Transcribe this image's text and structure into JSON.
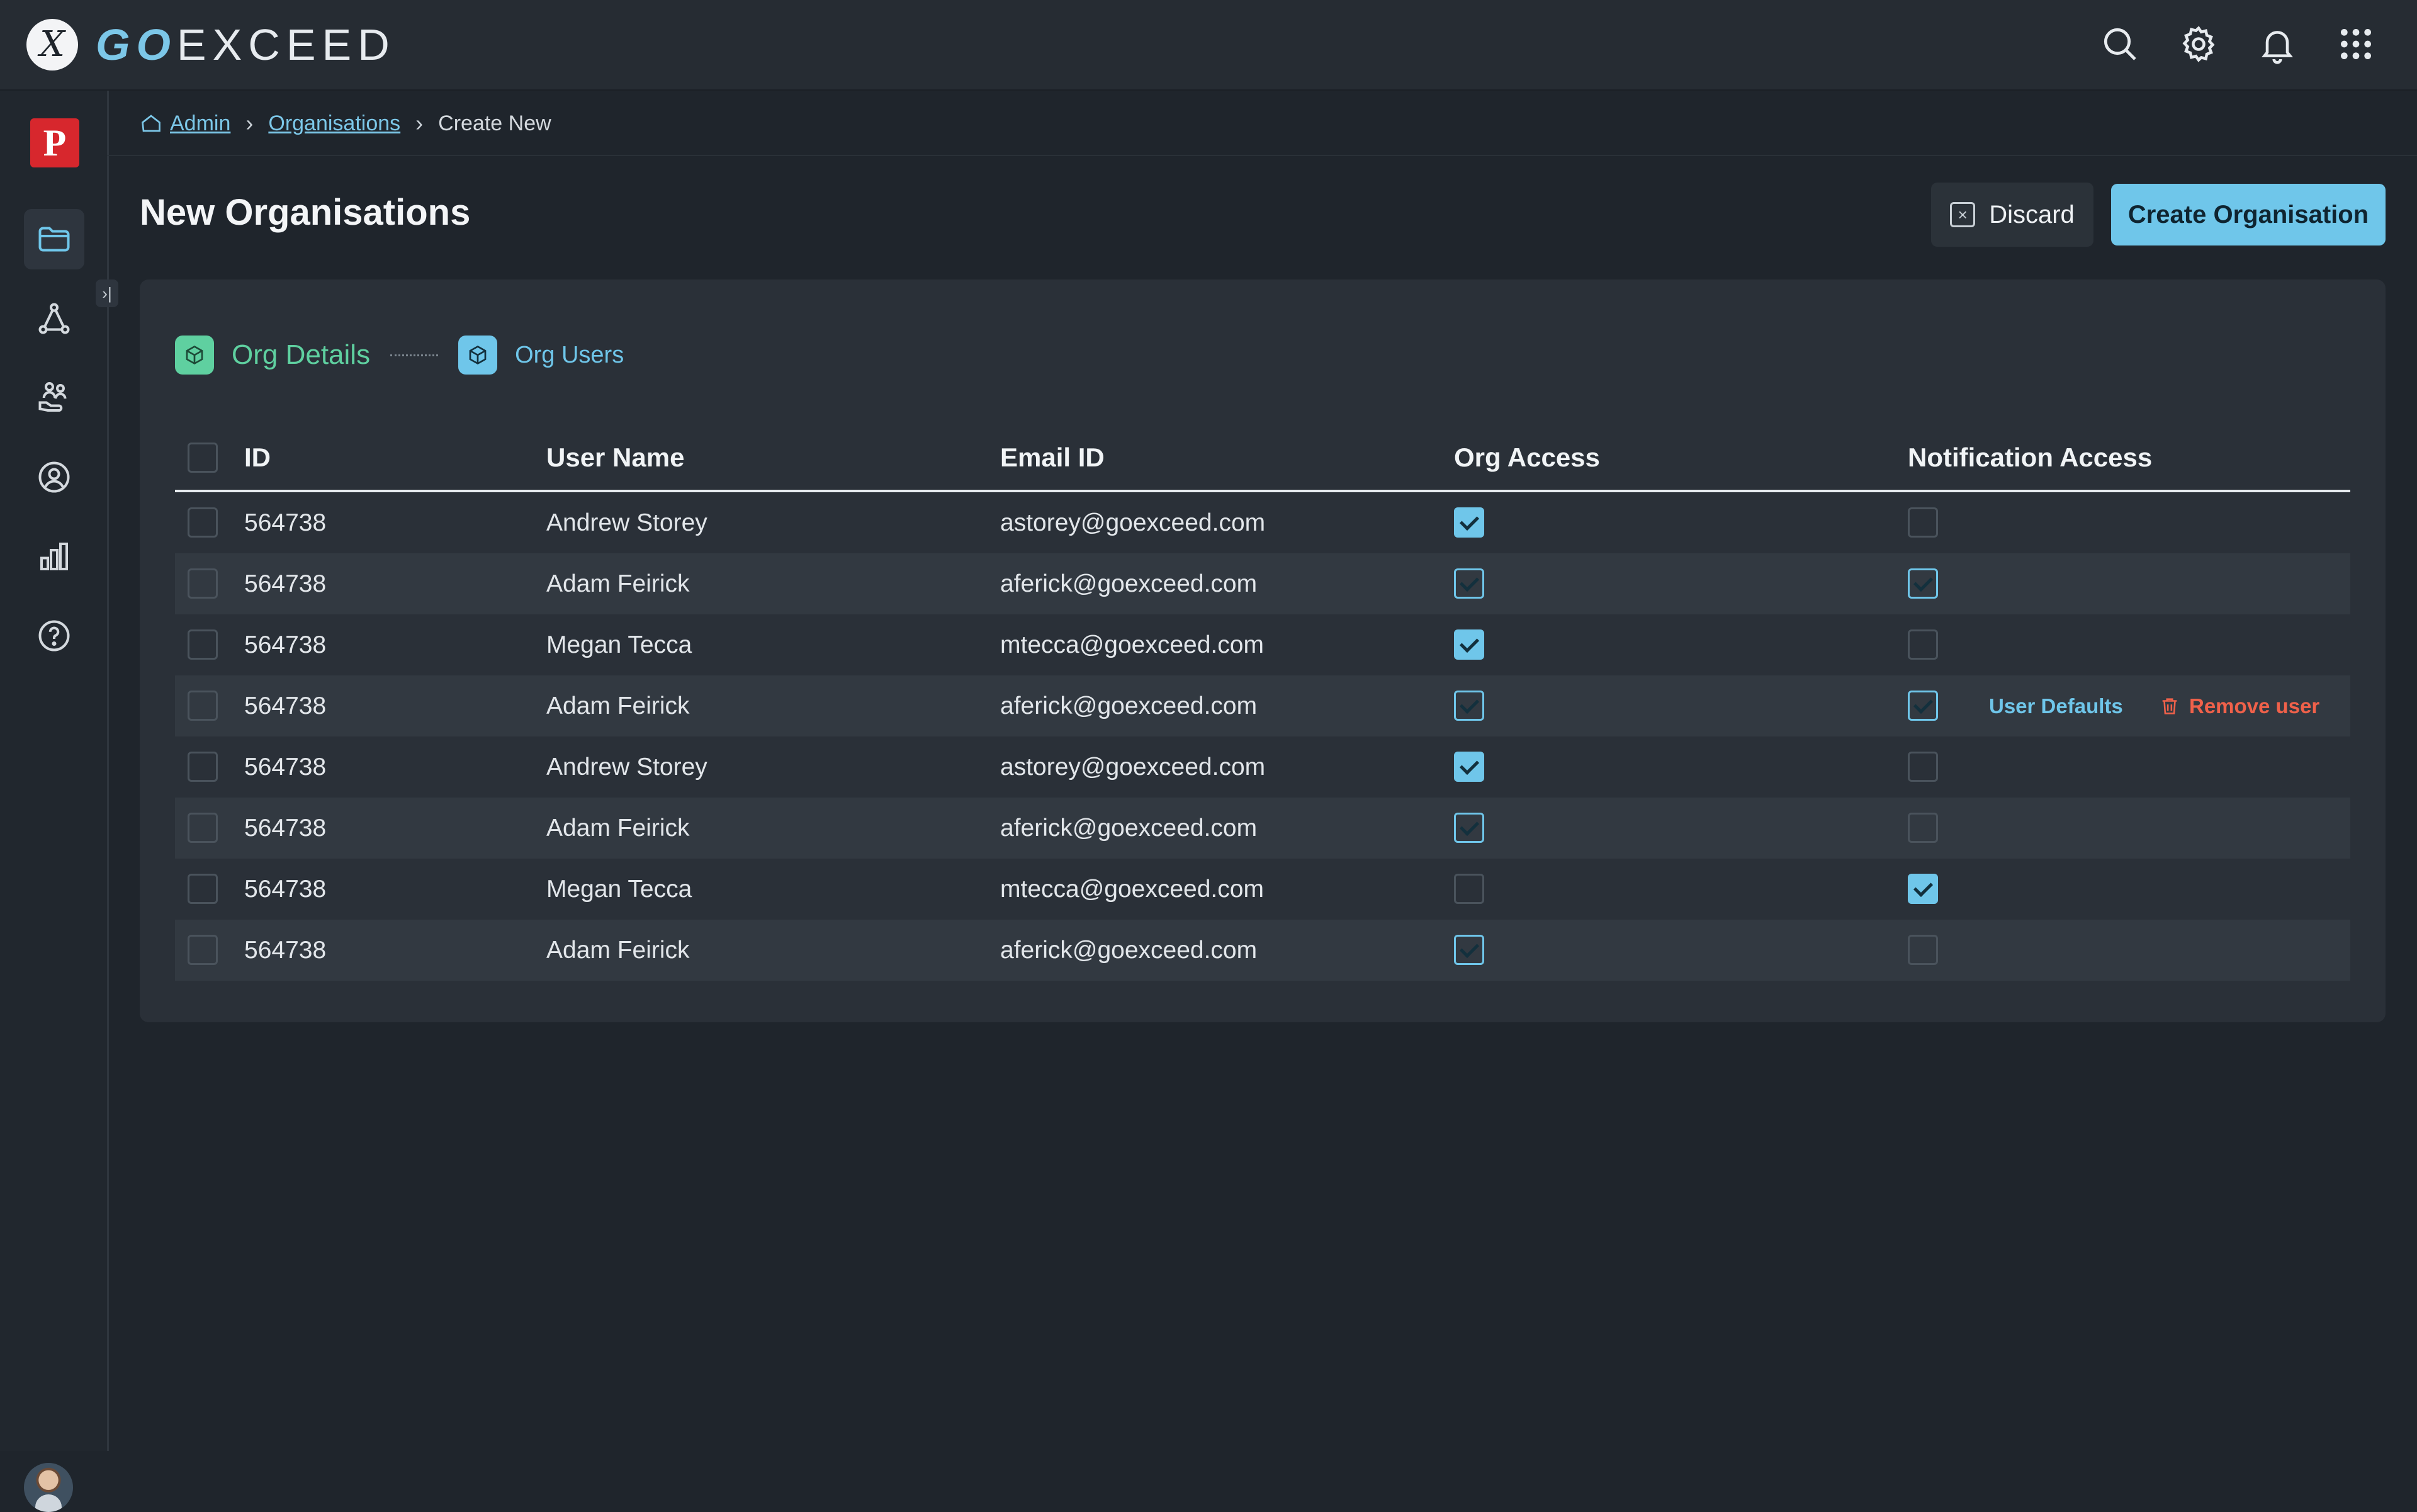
{
  "app": {
    "brand_prefix": "GO",
    "brand_suffix": "EXCEED",
    "logo_letter": "X"
  },
  "topbar": {
    "icons": [
      "search-icon",
      "gear-icon",
      "bell-icon",
      "apps-grid-icon"
    ]
  },
  "sidebar": {
    "brand_letter": "P",
    "collapse_glyph": "›|",
    "items": [
      {
        "icon": "folder-icon",
        "active": true
      },
      {
        "icon": "network-icon",
        "active": false
      },
      {
        "icon": "hand-users-icon",
        "active": false
      },
      {
        "icon": "user-circle-icon",
        "active": false
      },
      {
        "icon": "bar-chart-icon",
        "active": false
      },
      {
        "icon": "help-icon",
        "active": false
      }
    ]
  },
  "breadcrumb": {
    "home": "Admin",
    "parent": "Organisations",
    "current": "Create New"
  },
  "page": {
    "title": "New Organisations",
    "discard_label": "Discard",
    "create_label": "Create Organisation"
  },
  "steps": [
    {
      "label": "Org Details"
    },
    {
      "label": "Org Users"
    }
  ],
  "table": {
    "columns": [
      "ID",
      "User Name",
      "Email ID",
      "Org Access",
      "Notification Access"
    ],
    "rows": [
      {
        "id": "564738",
        "name": "Andrew Storey",
        "email": "astorey@goexceed.com",
        "org_access": true,
        "notification_access": false
      },
      {
        "id": "564738",
        "name": "Adam Feirick",
        "email": "aferick@goexceed.com",
        "org_access": true,
        "notification_access": true
      },
      {
        "id": "564738",
        "name": "Megan Tecca",
        "email": "mtecca@goexceed.com",
        "org_access": true,
        "notification_access": false
      },
      {
        "id": "564738",
        "name": "Adam Feirick",
        "email": "aferick@goexceed.com",
        "org_access": true,
        "notification_access": true
      },
      {
        "id": "564738",
        "name": "Andrew Storey",
        "email": "astorey@goexceed.com",
        "org_access": true,
        "notification_access": false
      },
      {
        "id": "564738",
        "name": "Adam Feirick",
        "email": "aferick@goexceed.com",
        "org_access": true,
        "notification_access": false
      },
      {
        "id": "564738",
        "name": "Megan Tecca",
        "email": "mtecca@goexceed.com",
        "org_access": false,
        "notification_access": true
      },
      {
        "id": "564738",
        "name": "Adam Feirick",
        "email": "aferick@goexceed.com",
        "org_access": true,
        "notification_access": false
      }
    ],
    "hover_actions": {
      "user_defaults": "User Defaults",
      "remove_user": "Remove user"
    }
  },
  "colors": {
    "accent": "#6fc6ea",
    "danger": "#f0614a",
    "step_done": "#5fd0a0"
  }
}
